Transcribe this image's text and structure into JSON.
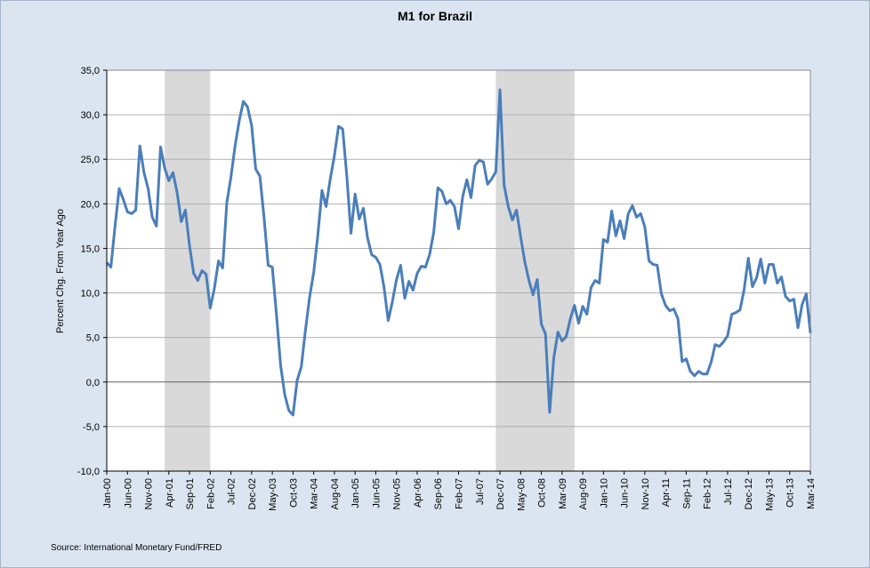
{
  "chart_data": {
    "type": "line",
    "title": "M1 for Brazil",
    "ylabel": "Percent Chg. From Year Ago",
    "xlabel": "",
    "source": "Source: International Monetary Fund/FRED",
    "ylim": [
      -10,
      35
    ],
    "y_ticks": [
      "-10,0",
      "-5,0",
      "0,0",
      "5,0",
      "10,0",
      "15,0",
      "20,0",
      "25,0",
      "30,0",
      "35,0"
    ],
    "y_tick_values": [
      -10,
      -5,
      0,
      5,
      10,
      15,
      20,
      25,
      30,
      35
    ],
    "x_ticks": [
      "Jan-00",
      "Jun-00",
      "Nov-00",
      "Apr-01",
      "Sep-01",
      "Feb-02",
      "Jul-02",
      "Dec-02",
      "May-03",
      "Oct-03",
      "Mar-04",
      "Aug-04",
      "Jan-05",
      "Jun-05",
      "Nov-05",
      "Apr-06",
      "Sep-06",
      "Feb-07",
      "Jul-07",
      "Dec-07",
      "May-08",
      "Oct-08",
      "Mar-09",
      "Aug-09",
      "Jan-10",
      "Jun-10",
      "Nov-10",
      "Apr-11",
      "Sep-11",
      "Feb-12",
      "Jul-12",
      "Dec-12",
      "May-13",
      "Oct-13",
      "Mar-14"
    ],
    "x_start": "Jan-00",
    "x_end": "Mar-14",
    "grid": true,
    "recessions": [
      [
        "Mar-01",
        "Feb-02"
      ],
      [
        "Nov-07",
        "Jun-09"
      ]
    ],
    "colors": {
      "line": "#4a7ebb",
      "recession": "#d9d9d9",
      "grid": "#b0b0b0",
      "plot_bg": "#ffffff",
      "background": "#dbe5f1"
    },
    "series": [
      {
        "values": [
          13.4,
          12.9,
          17.5,
          21.7,
          20.5,
          19.1,
          18.9,
          19.3,
          26.5,
          23.5,
          21.7,
          18.5,
          17.5,
          26.4,
          24.0,
          22.6,
          23.5,
          21.3,
          18.0,
          19.3,
          15.3,
          12.2,
          11.4,
          12.5,
          12.1,
          8.3,
          10.5,
          13.6,
          12.8,
          20.1,
          23.0,
          26.5,
          29.3,
          31.5,
          30.9,
          28.8,
          23.9,
          23.1,
          18.5,
          13.1,
          12.9,
          7.6,
          1.9,
          -1.4,
          -3.2,
          -3.7,
          0.2,
          1.7,
          5.8,
          9.5,
          12.3,
          16.5,
          21.5,
          19.7,
          22.8,
          25.4,
          28.7,
          28.4,
          23.1,
          16.7,
          21.1,
          18.3,
          19.5,
          16.2,
          14.3,
          14.0,
          13.2,
          10.6,
          6.9,
          9.0,
          11.5,
          13.1,
          9.4,
          11.3,
          10.3,
          12.2,
          13.0,
          12.9,
          14.3,
          16.8,
          21.8,
          21.4,
          20.0,
          20.4,
          19.7,
          17.2,
          20.8,
          22.7,
          20.7,
          24.3,
          24.9,
          24.7,
          22.2,
          22.8,
          23.6,
          32.8,
          22.1,
          19.7,
          18.2,
          19.3,
          16.3,
          13.5,
          11.4,
          9.8,
          11.5,
          6.5,
          5.4,
          -3.4,
          2.7,
          5.6,
          4.6,
          5.1,
          7.1,
          8.6,
          6.6,
          8.5,
          7.6,
          10.6,
          11.4,
          11.1,
          16.0,
          15.7,
          19.2,
          16.4,
          18.1,
          16.1,
          18.9,
          19.8,
          18.5,
          18.9,
          17.4,
          13.6,
          13.2,
          13.1,
          9.9,
          8.6,
          8.0,
          8.2,
          7.1,
          2.3,
          2.6,
          1.2,
          0.7,
          1.2,
          0.9,
          0.9,
          2.2,
          4.2,
          4.0,
          4.5,
          5.2,
          7.6,
          7.8,
          8.1,
          10.4,
          13.9,
          10.7,
          11.7,
          13.8,
          11.1,
          13.2,
          13.2,
          11.1,
          11.8,
          9.6,
          9.1,
          9.3,
          6.1,
          8.7,
          9.9,
          5.5
        ]
      }
    ]
  }
}
